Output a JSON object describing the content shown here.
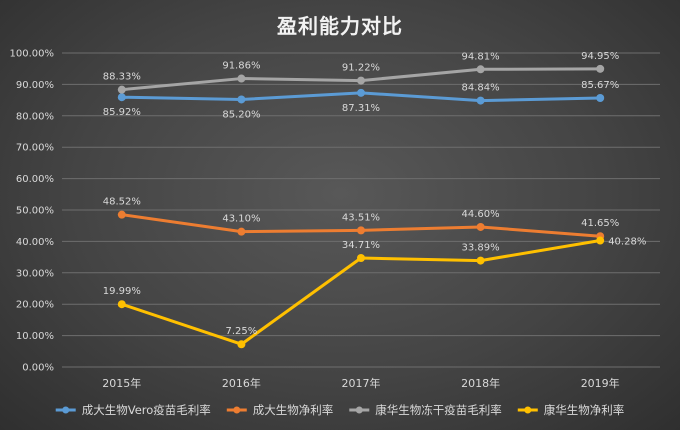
{
  "chart_data": {
    "type": "line",
    "title": "盈利能力对比",
    "categories": [
      "2015年",
      "2016年",
      "2017年",
      "2018年",
      "2019年"
    ],
    "ylim": [
      0,
      100
    ],
    "ytick_labels": [
      "0.00%",
      "10.00%",
      "20.00%",
      "30.00%",
      "40.00%",
      "50.00%",
      "60.00%",
      "70.00%",
      "80.00%",
      "90.00%",
      "100.00%"
    ],
    "grid": true,
    "legend_position": "bottom",
    "series": [
      {
        "name": "成大生物Vero疫苗毛利率",
        "color": "#5b9bd5",
        "values": [
          85.92,
          85.2,
          87.31,
          84.84,
          85.67
        ],
        "labels": [
          "85.92%",
          "85.20%",
          "87.31%",
          "84.84%",
          "85.67%"
        ],
        "label_pos": [
          "below",
          "below",
          "below",
          "above",
          "above"
        ]
      },
      {
        "name": "成大生物净利率",
        "color": "#ed7d31",
        "values": [
          48.52,
          43.1,
          43.51,
          44.6,
          41.65
        ],
        "labels": [
          "48.52%",
          "43.10%",
          "43.51%",
          "44.60%",
          "41.65%"
        ],
        "label_pos": [
          "above",
          "above",
          "above",
          "above",
          "above"
        ]
      },
      {
        "name": "康华生物冻干疫苗毛利率",
        "color": "#a5a5a5",
        "values": [
          88.33,
          91.86,
          91.22,
          94.81,
          94.95
        ],
        "labels": [
          "88.33%",
          "91.86%",
          "91.22%",
          "94.81%",
          "94.95%"
        ],
        "label_pos": [
          "above",
          "above",
          "above",
          "above",
          "above"
        ]
      },
      {
        "name": "康华生物净利率",
        "color": "#ffc000",
        "values": [
          19.99,
          7.25,
          34.71,
          33.89,
          40.28
        ],
        "labels": [
          "19.99%",
          "7.25%",
          "34.71%",
          "33.89%",
          "40.28%"
        ],
        "label_pos": [
          "above",
          "above",
          "above",
          "above",
          "right"
        ]
      }
    ]
  }
}
